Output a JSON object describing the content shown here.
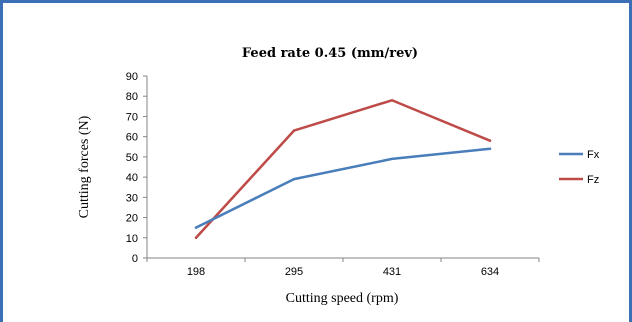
{
  "chart_data": {
    "type": "line",
    "title": "Feed rate 0.45 (mm/rev)",
    "xlabel": "Cutting speed (rpm)",
    "ylabel": "Cutting forces (N)",
    "categories": [
      "198",
      "295",
      "431",
      "634"
    ],
    "yticks": [
      "0",
      "10",
      "20",
      "30",
      "40",
      "50",
      "60",
      "70",
      "80",
      "90"
    ],
    "ylim": [
      0,
      90
    ],
    "grid": false,
    "legend_position": "right",
    "series": [
      {
        "name": "Fx",
        "color": "#4a7ebb",
        "values": [
          15,
          39,
          49,
          54
        ]
      },
      {
        "name": "Fz",
        "color": "#be4b48",
        "values": [
          10,
          63,
          78,
          58
        ]
      }
    ]
  }
}
